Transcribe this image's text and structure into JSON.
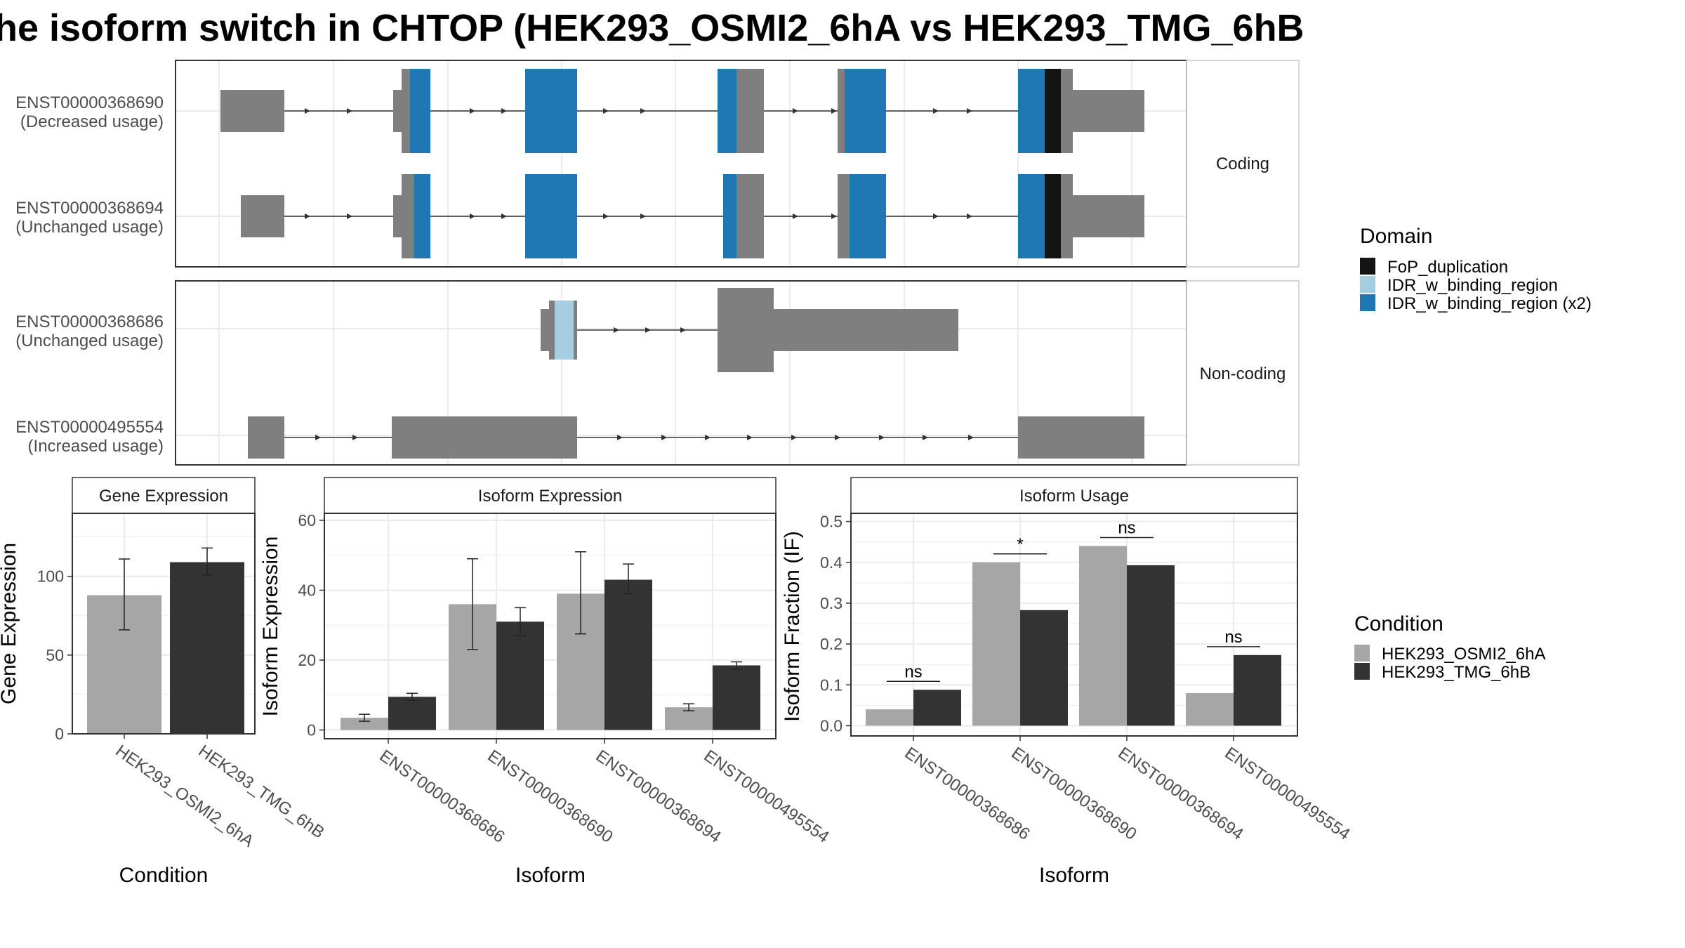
{
  "title": "he isoform switch in CHTOP (HEK293_OSMI2_6hA vs HEK293_TMG_6hB",
  "colors": {
    "exon": "#7f7f7f",
    "fop_duplication": "#141414",
    "idr_light": "#a6cee3",
    "idr_dark": "#1f78b4",
    "cond_a": "#a6a6a6",
    "cond_b": "#333333",
    "strip_bg": "#ffffff"
  },
  "transcripts": {
    "coding_label": "Coding",
    "noncoding_label": "Non-coding",
    "rows": [
      {
        "id": "ENST00000368690",
        "usage": "(Decreased usage)",
        "group": "coding"
      },
      {
        "id": "ENST00000368694",
        "usage": "(Unchanged usage)",
        "group": "coding"
      },
      {
        "id": "ENST00000368686",
        "usage": "(Unchanged usage)",
        "group": "noncoding"
      },
      {
        "id": "ENST00000495554",
        "usage": "(Increased usage)",
        "group": "noncoding"
      }
    ]
  },
  "legend_domain": {
    "title": "Domain",
    "items": [
      {
        "label": "FoP_duplication",
        "color": "#141414"
      },
      {
        "label": "IDR_w_binding_region",
        "color": "#a6cee3"
      },
      {
        "label": "IDR_w_binding_region (x2)",
        "color": "#1f78b4"
      }
    ]
  },
  "legend_condition": {
    "title": "Condition",
    "items": [
      {
        "label": "HEK293_OSMI2_6hA",
        "color": "#a6a6a6"
      },
      {
        "label": "HEK293_TMG_6hB",
        "color": "#333333"
      }
    ]
  },
  "chart_data": [
    {
      "type": "bar",
      "title": "Gene Expression",
      "xlabel": "Condition",
      "ylabel": "Gene Expression",
      "categories": [
        "HEK293_OSMI2_6hA",
        "HEK293_TMG_6hB"
      ],
      "values": [
        88,
        109
      ],
      "errors": [
        [
          66,
          111
        ],
        [
          101,
          118
        ]
      ],
      "ylim": [
        0,
        140
      ],
      "yticks": [
        0,
        50,
        100
      ]
    },
    {
      "type": "bar",
      "title": "Isoform Expression",
      "xlabel": "Isoform",
      "ylabel": "Isoform Expression",
      "categories": [
        "ENST00000368686",
        "ENST00000368690",
        "ENST00000368694",
        "ENST00000495554"
      ],
      "series": [
        {
          "name": "HEK293_OSMI2_6hA",
          "values": [
            3.5,
            36,
            39,
            6.5
          ],
          "errors": [
            [
              2.5,
              4.5
            ],
            [
              23,
              49
            ],
            [
              27.5,
              51
            ],
            [
              5.5,
              7.5
            ]
          ]
        },
        {
          "name": "HEK293_TMG_6hB",
          "values": [
            9.5,
            31,
            43,
            18.5
          ],
          "errors": [
            [
              8.5,
              10.5
            ],
            [
              27,
              35
            ],
            [
              39,
              47.5
            ],
            [
              17.5,
              19.5
            ]
          ]
        }
      ],
      "ylim": [
        -2.5,
        62
      ],
      "yticks": [
        0,
        20,
        40,
        60
      ]
    },
    {
      "type": "bar",
      "title": "Isoform Usage",
      "xlabel": "Isoform",
      "ylabel": "Isoform Fraction (IF)",
      "categories": [
        "ENST00000368686",
        "ENST00000368690",
        "ENST00000368694",
        "ENST00000495554"
      ],
      "series": [
        {
          "name": "HEK293_OSMI2_6hA",
          "values": [
            0.04,
            0.4,
            0.44,
            0.08
          ]
        },
        {
          "name": "HEK293_TMG_6hB",
          "values": [
            0.088,
            0.283,
            0.393,
            0.173
          ]
        }
      ],
      "significance": [
        "ns",
        "*",
        "ns",
        "ns"
      ],
      "ylim": [
        -0.025,
        0.52
      ],
      "yticks": [
        0.0,
        0.1,
        0.2,
        0.3,
        0.4,
        0.5
      ],
      "ytick_labels": [
        "0.0",
        "0.1",
        "0.2",
        "0.3",
        "0.4",
        "0.5"
      ]
    }
  ]
}
